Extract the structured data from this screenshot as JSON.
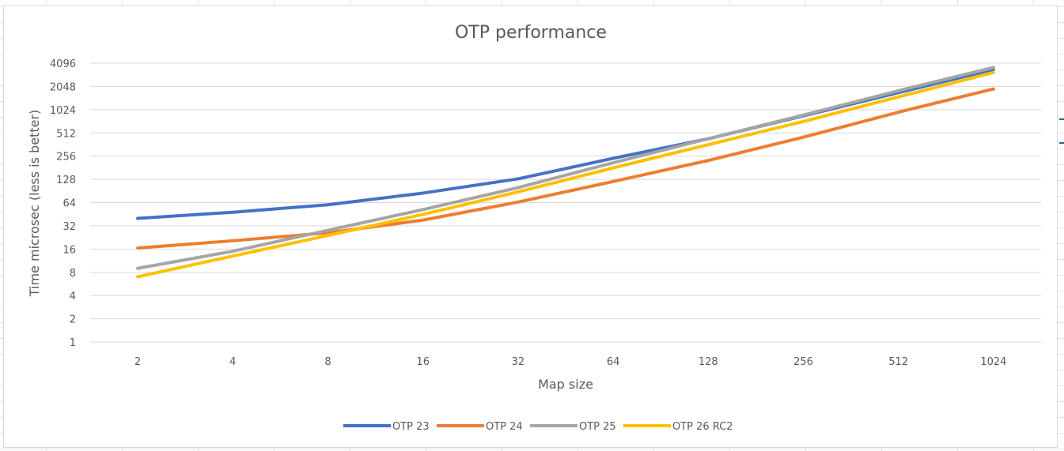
{
  "chart_data": {
    "type": "line",
    "title": "OTP performance",
    "xlabel": "Map size",
    "ylabel": "Time microsec (less is better)",
    "y_scale": "log2",
    "ylim": [
      1,
      4096
    ],
    "y_ticks": [
      "1",
      "2",
      "4",
      "8",
      "16",
      "32",
      "64",
      "128",
      "256",
      "512",
      "1024",
      "2048",
      "4096"
    ],
    "categories": [
      "2",
      "4",
      "8",
      "16",
      "32",
      "64",
      "128",
      "256",
      "512",
      "1024"
    ],
    "grid": "horizontal",
    "legend_position": "bottom",
    "series": [
      {
        "name": "OTP 23",
        "color": "#4472C4",
        "values": [
          40,
          48,
          60,
          85,
          130,
          240,
          430,
          850,
          1700,
          3400
        ]
      },
      {
        "name": "OTP 24",
        "color": "#ED7D31",
        "values": [
          16.5,
          20.5,
          26,
          38,
          65,
          120,
          225,
          450,
          950,
          1900
        ]
      },
      {
        "name": "OTP 25",
        "color": "#A5A5A5",
        "values": [
          9,
          15,
          28,
          52,
          100,
          210,
          430,
          870,
          1800,
          3600
        ]
      },
      {
        "name": "OTP 26 RC2",
        "color": "#FFC000",
        "values": [
          7,
          13,
          24,
          45,
          88,
          180,
          360,
          720,
          1500,
          3100
        ]
      }
    ]
  }
}
